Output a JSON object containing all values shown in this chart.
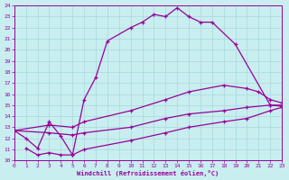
{
  "xlabel": "Windchill (Refroidissement éolien,°C)",
  "bg_color": "#c8eef0",
  "grid_color": "#a8d8dc",
  "line_color": "#990099",
  "xlim": [
    0,
    23
  ],
  "ylim": [
    10,
    24
  ],
  "xticks": [
    0,
    1,
    2,
    3,
    4,
    5,
    6,
    7,
    8,
    9,
    10,
    11,
    12,
    13,
    14,
    15,
    16,
    17,
    18,
    19,
    20,
    21,
    22,
    23
  ],
  "yticks": [
    10,
    11,
    12,
    13,
    14,
    15,
    16,
    17,
    18,
    19,
    20,
    21,
    22,
    23,
    24
  ],
  "curves": [
    {
      "x": [
        0,
        1,
        2,
        3,
        4,
        5,
        6,
        7,
        8,
        10,
        11,
        12,
        13,
        14,
        15,
        16,
        17,
        19,
        22,
        23
      ],
      "y": [
        12.7,
        12.0,
        11.1,
        13.5,
        12.2,
        10.5,
        15.5,
        17.5,
        20.8,
        22.0,
        22.5,
        23.2,
        23.0,
        23.8,
        23.0,
        22.5,
        22.5,
        20.5,
        15.0,
        14.9
      ]
    },
    {
      "x": [
        0,
        3,
        5,
        6,
        10,
        13,
        15,
        18,
        20,
        21,
        22,
        23
      ],
      "y": [
        12.7,
        13.2,
        13.0,
        13.5,
        14.5,
        15.5,
        16.2,
        16.8,
        16.5,
        16.2,
        15.5,
        15.2
      ]
    },
    {
      "x": [
        0,
        3,
        5,
        6,
        10,
        13,
        15,
        18,
        20,
        22,
        23
      ],
      "y": [
        12.7,
        12.5,
        12.3,
        12.5,
        13.0,
        13.8,
        14.2,
        14.5,
        14.8,
        15.0,
        15.0
      ]
    },
    {
      "x": [
        1,
        2,
        3,
        4,
        5,
        6,
        10,
        13,
        15,
        18,
        20,
        22,
        23
      ],
      "y": [
        11.1,
        10.5,
        10.7,
        10.5,
        10.5,
        11.0,
        11.8,
        12.5,
        13.0,
        13.5,
        13.8,
        14.5,
        14.8
      ]
    }
  ]
}
